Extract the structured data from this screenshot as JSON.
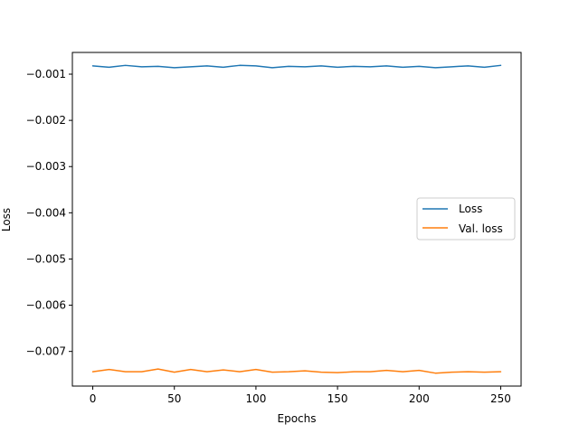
{
  "chart_data": {
    "type": "line",
    "title": "",
    "xlabel": "Epochs",
    "ylabel": "Loss",
    "xlim": [
      -12.5,
      262.5
    ],
    "ylim": [
      -0.00775,
      -0.00053
    ],
    "xticks": [
      0,
      50,
      100,
      150,
      200,
      250
    ],
    "xtick_labels": [
      "0",
      "50",
      "100",
      "150",
      "200",
      "250"
    ],
    "yticks": [
      -0.001,
      -0.002,
      -0.003,
      -0.004,
      -0.005,
      -0.006,
      -0.007
    ],
    "ytick_labels": [
      "−0.001",
      "−0.002",
      "−0.003",
      "−0.004",
      "−0.005",
      "−0.006",
      "−0.007"
    ],
    "grid": false,
    "legend_position": "center-right",
    "series": [
      {
        "name": "Loss",
        "color": "#1f77b4",
        "x": [
          0,
          10,
          20,
          30,
          40,
          50,
          60,
          70,
          80,
          90,
          100,
          110,
          120,
          130,
          140,
          150,
          160,
          170,
          180,
          190,
          200,
          210,
          220,
          230,
          240,
          250
        ],
        "y": [
          -0.00082,
          -0.00085,
          -0.00081,
          -0.00084,
          -0.00083,
          -0.00086,
          -0.00084,
          -0.00082,
          -0.00085,
          -0.00081,
          -0.00082,
          -0.00086,
          -0.00083,
          -0.00084,
          -0.00082,
          -0.00085,
          -0.00083,
          -0.00084,
          -0.00082,
          -0.00085,
          -0.00083,
          -0.00086,
          -0.00084,
          -0.00082,
          -0.00085,
          -0.00081
        ]
      },
      {
        "name": "Val. loss",
        "color": "#ff7f0e",
        "x": [
          0,
          10,
          20,
          30,
          40,
          50,
          60,
          70,
          80,
          90,
          100,
          110,
          120,
          130,
          140,
          150,
          160,
          170,
          180,
          190,
          200,
          210,
          220,
          230,
          240,
          250
        ],
        "y": [
          -0.00744,
          -0.00739,
          -0.00744,
          -0.00744,
          -0.00738,
          -0.00745,
          -0.00739,
          -0.00744,
          -0.0074,
          -0.00744,
          -0.00739,
          -0.00745,
          -0.00744,
          -0.00742,
          -0.00745,
          -0.00746,
          -0.00744,
          -0.00744,
          -0.00741,
          -0.00744,
          -0.00741,
          -0.00747,
          -0.00745,
          -0.00744,
          -0.00745,
          -0.00744
        ]
      }
    ]
  }
}
